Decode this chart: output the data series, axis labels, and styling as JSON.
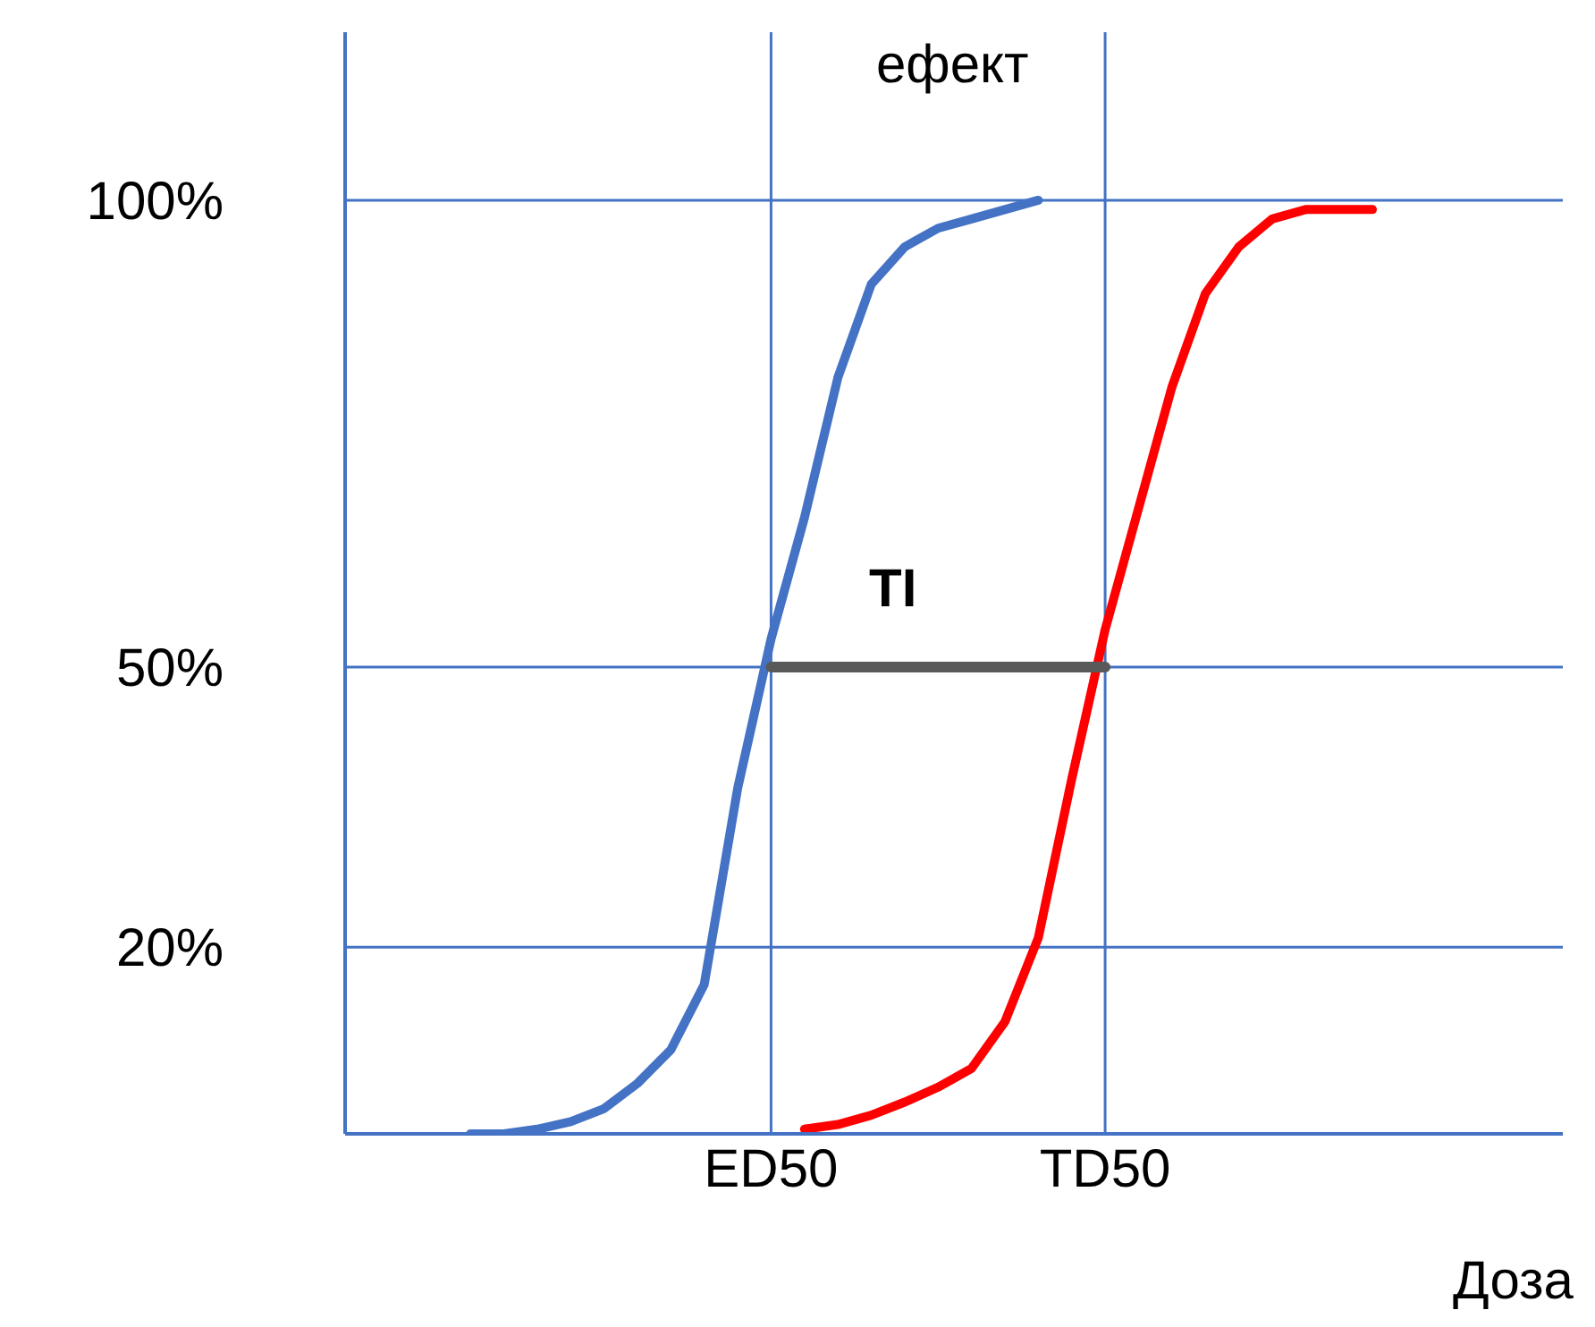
{
  "chart_data": {
    "type": "line",
    "ylabel": "ефект",
    "xlabel": "Доза",
    "categories": [
      null,
      null,
      null,
      null,
      null,
      null,
      null,
      null,
      null,
      null,
      null,
      "ED50",
      null,
      null,
      null,
      null,
      null,
      null,
      null,
      null,
      null,
      "TD50",
      null,
      null,
      null,
      null,
      null,
      null,
      null,
      null,
      null,
      null,
      null,
      null,
      null
    ],
    "ylim": [
      0,
      118
    ],
    "yticks": [
      {
        "value": 20,
        "label": "20%"
      },
      {
        "value": 50,
        "label": "50%"
      },
      {
        "value": 100,
        "label": "100%"
      }
    ],
    "series": [
      {
        "color": "#4472c4",
        "values": [
          null,
          null,
          0,
          0,
          0.5,
          1.3,
          2.7,
          5.4,
          9,
          16,
          37,
          53,
          66,
          81,
          91,
          95,
          97,
          98,
          99,
          100,
          null,
          null,
          null,
          null,
          null,
          null,
          null,
          null,
          null,
          null,
          null,
          null,
          null,
          null,
          null
        ]
      },
      {
        "color": "#ff0000",
        "values": [
          null,
          null,
          null,
          null,
          null,
          null,
          null,
          null,
          null,
          null,
          null,
          null,
          0.5,
          1,
          2,
          3.4,
          5,
          7,
          12,
          21,
          38,
          54,
          67,
          80,
          90,
          95,
          98,
          99,
          99,
          99,
          null,
          null,
          null,
          null,
          null
        ]
      },
      {
        "color": "#595959",
        "values": [
          null,
          null,
          null,
          null,
          null,
          null,
          null,
          null,
          null,
          null,
          null,
          50,
          null,
          null,
          null,
          null,
          null,
          null,
          null,
          null,
          null,
          50,
          null,
          null,
          null,
          null,
          null,
          null,
          null,
          null,
          null,
          null,
          null,
          null,
          null
        ]
      }
    ],
    "ref_lines": [
      {
        "axis": "y",
        "value": 100,
        "color": "#4472c4"
      },
      {
        "axis": "y",
        "value": 50,
        "color": "#4472c4"
      },
      {
        "axis": "y",
        "value": 20,
        "color": "#4472c4"
      },
      {
        "axis": "x",
        "value": "ED50",
        "color": "#4472c4"
      },
      {
        "axis": "x",
        "value": "TD50",
        "color": "#4472c4"
      }
    ],
    "annotations": [
      "TI"
    ]
  }
}
